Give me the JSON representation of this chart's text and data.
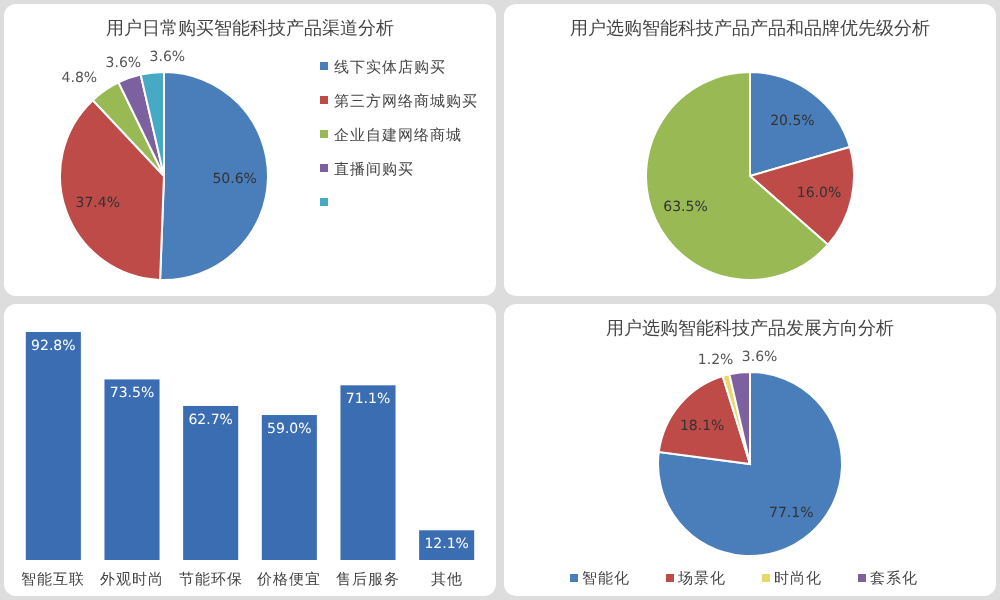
{
  "chart_data": [
    {
      "type": "pie",
      "title": "用户日常购买智能科技产品渠道分析",
      "categories": [
        "线下实体店购买",
        "第三方网络商城购买",
        "企业自建网络商城",
        "直播间购买",
        null
      ],
      "values": [
        50.6,
        37.4,
        4.8,
        3.6,
        3.6
      ],
      "colors": [
        "#4a7ebb",
        "#be4b48",
        "#98b954",
        "#7d60a0",
        "#46aac5"
      ],
      "value_labels": [
        "50.6%",
        "37.4%",
        "4.8%",
        "3.6%",
        "3.6%"
      ],
      "legend": "right"
    },
    {
      "type": "pie",
      "title": "用户选购智能科技产品产品和品牌优先级分析",
      "categories": [
        null,
        null,
        null
      ],
      "values": [
        20.5,
        16.0,
        63.5
      ],
      "colors": [
        "#4a7ebb",
        "#be4b48",
        "#98b954"
      ],
      "value_labels": [
        "20.5%",
        "16.0%",
        "63.5%"
      ]
    },
    {
      "type": "bar",
      "categories": [
        "智能互联",
        "外观时尚",
        "节能环保",
        "价格便宜",
        "售后服务",
        "其他"
      ],
      "values": [
        92.8,
        73.5,
        62.7,
        59.0,
        71.1,
        12.1
      ],
      "color": "#3b6db3",
      "value_labels": [
        "92.8%",
        "73.5%",
        "62.7%",
        "59.0%",
        "71.1%",
        "12.1%"
      ]
    },
    {
      "type": "pie",
      "title": "用户选购智能科技产品发展方向分析",
      "categories": [
        "智能化",
        "场景化",
        "时尚化",
        "套系化"
      ],
      "values": [
        77.1,
        18.1,
        1.2,
        3.6
      ],
      "colors": [
        "#4a7ebb",
        "#be4b48",
        "#e6d96a",
        "#7d60a0"
      ],
      "value_labels": [
        "77.1%",
        "18.1%",
        "1.2%",
        "3.6%"
      ],
      "legend": "bottom"
    }
  ]
}
